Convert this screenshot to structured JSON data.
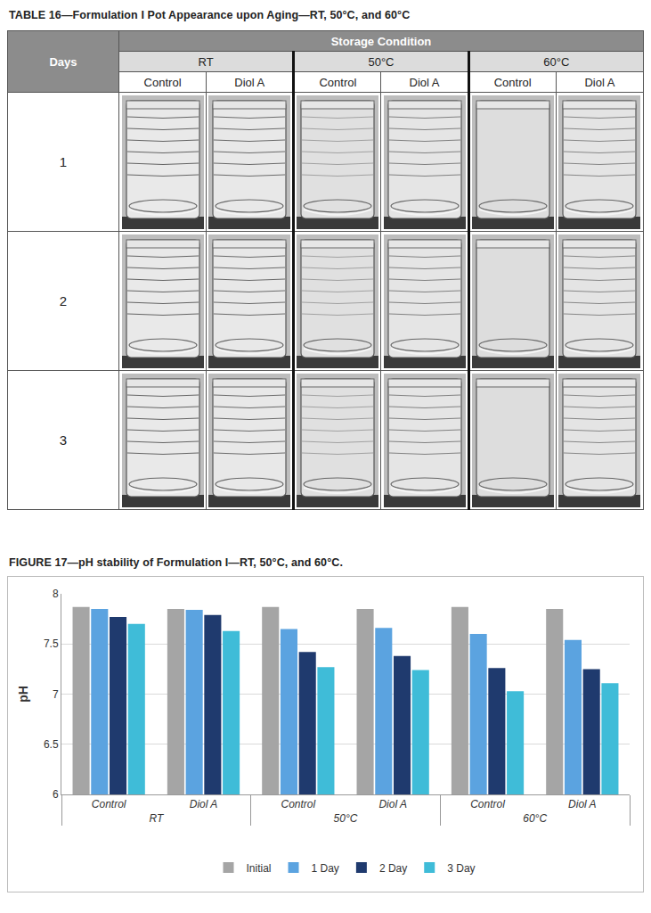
{
  "header": {
    "title": "TABLE 16—Formulation I Pot Appearance upon Aging—RT, 50°C, and 60°C"
  },
  "table": {
    "corner": "Days",
    "group_header": "Storage Condition",
    "conditions": [
      "RT",
      "50°C",
      "60°C"
    ],
    "samples": [
      "Control",
      "Diol A"
    ],
    "rows": [
      "1",
      "2",
      "3"
    ]
  },
  "chart_data": {
    "type": "bar",
    "title": "FIGURE 17—pH stability of Formulation I—RT, 50°C, and 60°C.",
    "ylabel": "pH",
    "categories": [
      [
        "RT",
        "Control"
      ],
      [
        "RT",
        "Diol A"
      ],
      [
        "50°C",
        "Control"
      ],
      [
        "50°C",
        "Diol A"
      ],
      [
        "60°C",
        "Control"
      ],
      [
        "60°C",
        "Diol A"
      ]
    ],
    "series": [
      {
        "name": "Initial",
        "color": "#a5a5a5",
        "values": [
          7.87,
          7.85,
          7.87,
          7.85,
          7.87,
          7.85
        ]
      },
      {
        "name": "1 Day",
        "color": "#5ba3e0",
        "values": [
          7.85,
          7.84,
          7.65,
          7.66,
          7.6,
          7.54
        ]
      },
      {
        "name": "2 Day",
        "color": "#1f3a6e",
        "values": [
          7.77,
          7.79,
          7.42,
          7.38,
          7.26,
          7.25
        ]
      },
      {
        "name": "3 Day",
        "color": "#3fbcd8",
        "values": [
          7.7,
          7.63,
          7.27,
          7.24,
          7.03,
          7.11
        ]
      }
    ],
    "ylim": [
      6,
      8
    ],
    "yticks": [
      6,
      6.5,
      7,
      7.5,
      8
    ],
    "grid": true,
    "legend": "bottom"
  }
}
